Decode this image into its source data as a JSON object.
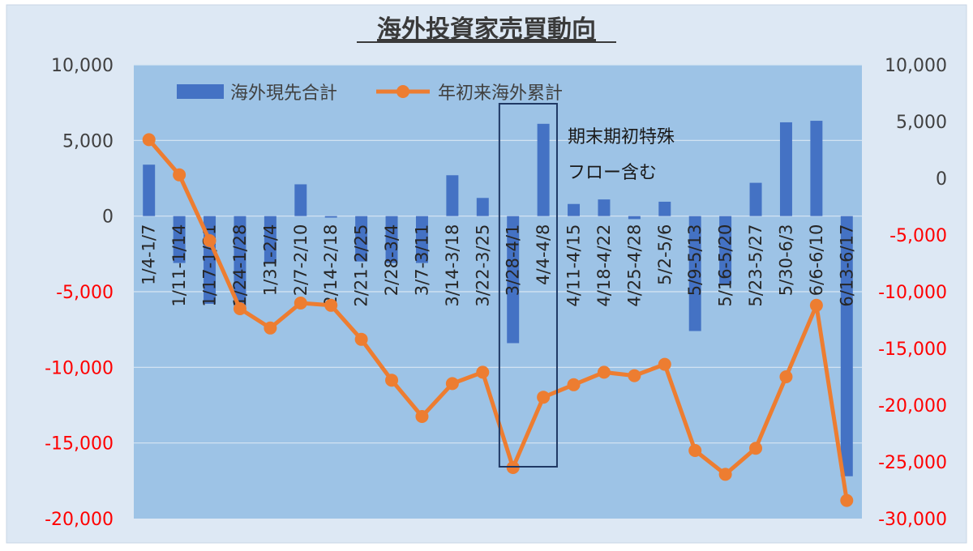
{
  "colors": {
    "outer_background": "#dde8f4",
    "plot_background": "#9dc3e6",
    "bar_color": "#4472c4",
    "line_color": "#ed7d31",
    "negative_tick_color": "#ff0000",
    "positive_tick_color": "#404040",
    "box_color": "#1f3864"
  },
  "chart_data": {
    "type": "bar+line",
    "title": "海外投資家売買動向",
    "categories": [
      "1/4-1/7",
      "1/11-1/14",
      "1/17-1/21",
      "1/24-1/28",
      "1/31-2/4",
      "2/7-2/10",
      "2/14-2/18",
      "2/21-2/25",
      "2/28-3/4",
      "3/7-3/11",
      "3/14-3/18",
      "3/22-3/25",
      "3/28-4/1",
      "4/4-4/8",
      "4/11-4/15",
      "4/18-4/22",
      "4/25-4/28",
      "5/2-5/6",
      "5/9-5/13",
      "5/16-5/20",
      "5/23-5/27",
      "5/30-6/3",
      "6/6-6/10",
      "6/13-6/17"
    ],
    "series": [
      {
        "name": "海外現先合計",
        "type": "bar",
        "axis": "left",
        "values": [
          3400,
          -3100,
          -5800,
          -6000,
          -3100,
          2100,
          -100,
          -3000,
          -3100,
          -3100,
          2700,
          1200,
          -8400,
          6100,
          800,
          1100,
          -200,
          950,
          -7600,
          -4500,
          2200,
          6200,
          6300,
          -17200
        ]
      },
      {
        "name": "年初来海外累計",
        "type": "line",
        "axis": "right",
        "values": [
          3400,
          300,
          -5500,
          -11500,
          -13200,
          -11000,
          -11200,
          -14200,
          -17800,
          -21000,
          -18100,
          -17100,
          -25500,
          -19300,
          -18200,
          -17100,
          -17400,
          -16400,
          -24000,
          -26100,
          -23800,
          -17500,
          -11200,
          -28400
        ]
      }
    ],
    "left_axis": {
      "ylim": [
        -20000,
        10000
      ],
      "ticks": [
        10000,
        5000,
        0,
        -5000,
        -10000,
        -15000,
        -20000
      ],
      "tick_labels": [
        "10,000",
        "5,000",
        "0",
        "-5,000",
        "-10,000",
        "-15,000",
        "-20,000"
      ]
    },
    "right_axis": {
      "ylim": [
        -30000,
        10000
      ],
      "ticks": [
        10000,
        5000,
        0,
        -5000,
        -10000,
        -15000,
        -20000,
        -25000,
        -30000
      ],
      "tick_labels": [
        "10,000",
        "5,000",
        "0",
        "-5,000",
        "-10,000",
        "-15,000",
        "-20,000",
        "-25,000",
        "-30,000"
      ]
    },
    "legend_position": "top-left",
    "grid": "horizontal",
    "annotation": {
      "lines": [
        "期末期初特殊",
        "フロー含む"
      ],
      "boxed_categories": [
        "3/28-4/1",
        "4/4-4/8"
      ]
    }
  }
}
